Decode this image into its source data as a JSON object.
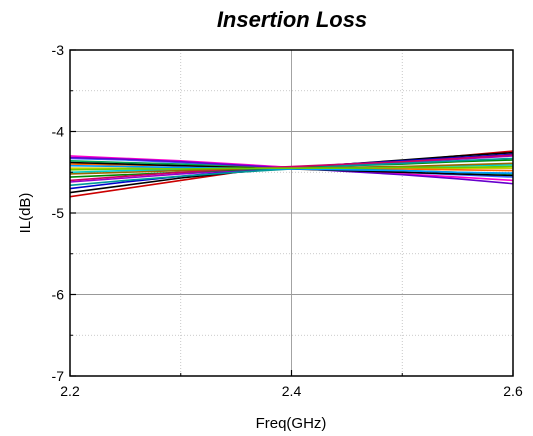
{
  "chart_data": {
    "type": "line",
    "title": "Insertion Loss",
    "xlabel": "Freq(GHz)",
    "ylabel": "IL(dB)",
    "xlim": [
      2.2,
      2.6
    ],
    "ylim": [
      -7,
      -3
    ],
    "x_ticks": [
      2.2,
      2.4,
      2.6
    ],
    "x_tick_labels": [
      "2.2",
      "2.4",
      "2.6"
    ],
    "y_ticks": [
      -7,
      -6,
      -5,
      -4,
      -3
    ],
    "y_tick_labels": [
      "-7",
      "-6",
      "-5",
      "-4",
      "-3"
    ],
    "grid": true,
    "legend": "none",
    "x": [
      2.2,
      2.25,
      2.3,
      2.35,
      2.4,
      2.45,
      2.5,
      2.55,
      2.6
    ],
    "series": [
      {
        "color": "#cc0000",
        "values": [
          -4.8,
          -4.7,
          -4.6,
          -4.5,
          -4.45,
          -4.4,
          -4.36,
          -4.3,
          -4.24
        ]
      },
      {
        "color": "#000000",
        "values": [
          -4.75,
          -4.66,
          -4.57,
          -4.5,
          -4.45,
          -4.4,
          -4.35,
          -4.3,
          -4.26
        ]
      },
      {
        "color": "#0000cc",
        "values": [
          -4.7,
          -4.62,
          -4.55,
          -4.49,
          -4.44,
          -4.4,
          -4.36,
          -4.32,
          -4.28
        ]
      },
      {
        "color": "#9900cc",
        "values": [
          -4.62,
          -4.57,
          -4.52,
          -4.48,
          -4.44,
          -4.41,
          -4.38,
          -4.34,
          -4.3
        ]
      },
      {
        "color": "#008800",
        "values": [
          -4.56,
          -4.53,
          -4.5,
          -4.47,
          -4.45,
          -4.42,
          -4.4,
          -4.37,
          -4.35
        ]
      },
      {
        "color": "#00cccc",
        "values": [
          -4.5,
          -4.48,
          -4.47,
          -4.46,
          -4.45,
          -4.44,
          -4.43,
          -4.42,
          -4.41
        ]
      },
      {
        "color": "#cccc00",
        "values": [
          -4.45,
          -4.45,
          -4.45,
          -4.45,
          -4.45,
          -4.45,
          -4.45,
          -4.45,
          -4.45
        ]
      },
      {
        "color": "#ff6600",
        "values": [
          -4.4,
          -4.41,
          -4.42,
          -4.43,
          -4.44,
          -4.45,
          -4.46,
          -4.47,
          -4.48
        ]
      },
      {
        "color": "#00aa55",
        "values": [
          -4.36,
          -4.38,
          -4.4,
          -4.42,
          -4.44,
          -4.46,
          -4.48,
          -4.5,
          -4.52
        ]
      },
      {
        "color": "#3366ff",
        "values": [
          -4.33,
          -4.35,
          -4.38,
          -4.41,
          -4.44,
          -4.47,
          -4.5,
          -4.53,
          -4.56
        ]
      },
      {
        "color": "#ff00cc",
        "values": [
          -4.3,
          -4.33,
          -4.36,
          -4.4,
          -4.44,
          -4.48,
          -4.52,
          -4.56,
          -4.6
        ]
      },
      {
        "color": "#6600cc",
        "values": [
          -4.32,
          -4.34,
          -4.37,
          -4.41,
          -4.45,
          -4.49,
          -4.53,
          -4.58,
          -4.64
        ]
      },
      {
        "color": "#000000",
        "values": [
          -4.38,
          -4.4,
          -4.42,
          -4.44,
          -4.46,
          -4.48,
          -4.5,
          -4.52,
          -4.54
        ]
      },
      {
        "color": "#cc0066",
        "values": [
          -4.6,
          -4.55,
          -4.5,
          -4.46,
          -4.43,
          -4.4,
          -4.37,
          -4.33,
          -4.29
        ]
      },
      {
        "color": "#009999",
        "values": [
          -4.66,
          -4.6,
          -4.55,
          -4.5,
          -4.46,
          -4.42,
          -4.39,
          -4.36,
          -4.33
        ]
      },
      {
        "color": "#996600",
        "values": [
          -4.52,
          -4.5,
          -4.48,
          -4.46,
          -4.45,
          -4.44,
          -4.43,
          -4.41,
          -4.39
        ]
      },
      {
        "color": "#0099ff",
        "values": [
          -4.42,
          -4.43,
          -4.44,
          -4.45,
          -4.46,
          -4.47,
          -4.48,
          -4.5,
          -4.51
        ]
      },
      {
        "color": "#66cc00",
        "values": [
          -4.47,
          -4.46,
          -4.46,
          -4.45,
          -4.45,
          -4.45,
          -4.44,
          -4.44,
          -4.43
        ]
      }
    ]
  }
}
